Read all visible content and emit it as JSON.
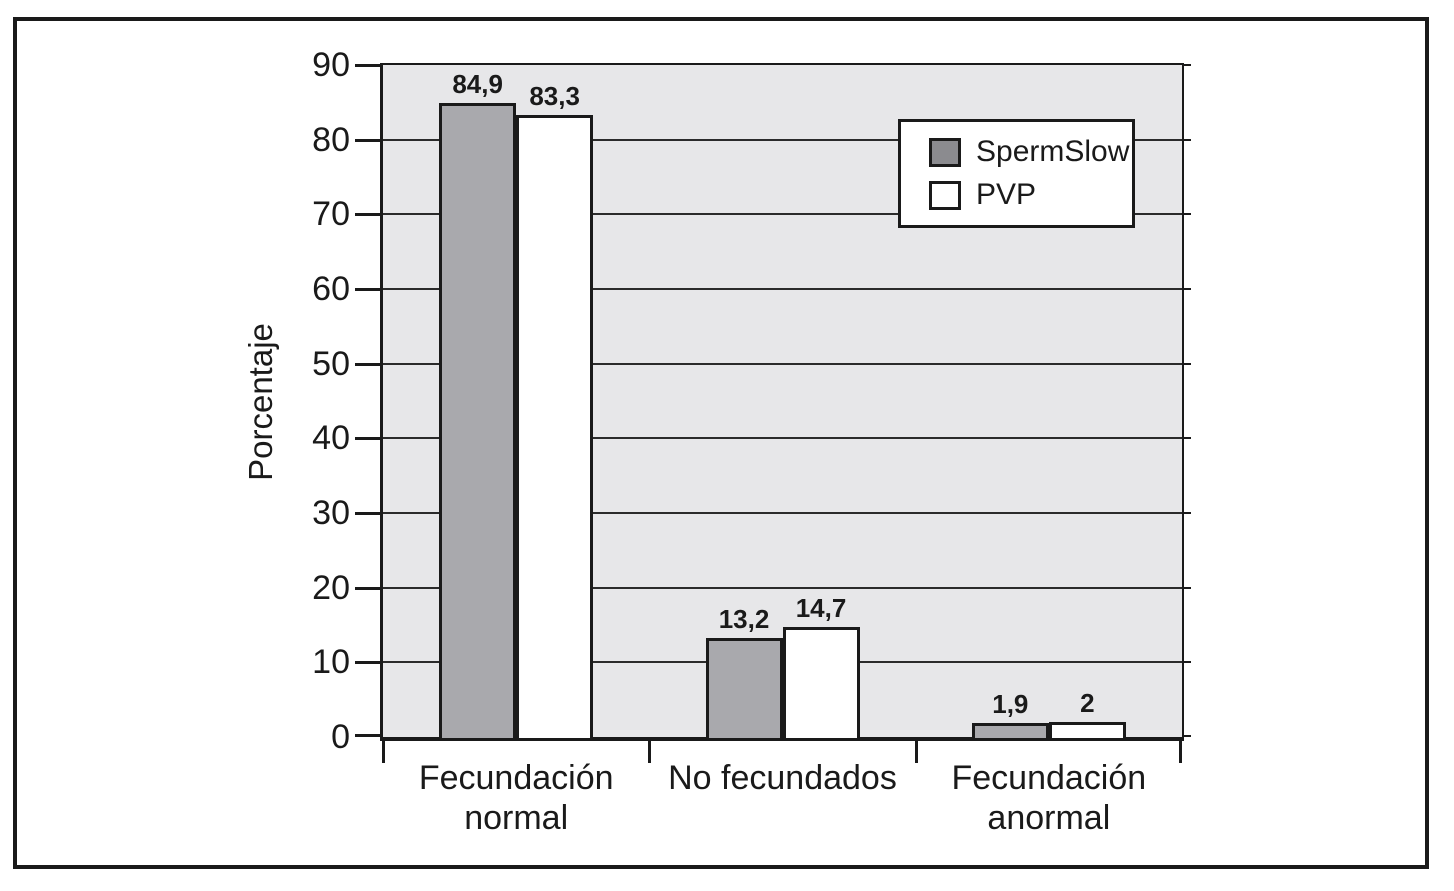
{
  "page": {
    "background_color": "#ffffff",
    "frame_border_color": "#1a1a1a"
  },
  "chart_data": {
    "type": "bar",
    "title": "",
    "xlabel": "",
    "ylabel": "Porcentaje",
    "ylim": [
      0,
      90
    ],
    "ytick_step": 10,
    "yticks": [
      0,
      10,
      20,
      30,
      40,
      50,
      60,
      70,
      80,
      90
    ],
    "grid": true,
    "legend_position": "top-right",
    "plot_background": "#e7e7e9",
    "gridline_color": "#2b2b2b",
    "axis_color": "#1a1a1a",
    "categories": [
      {
        "id": "fecundacion-normal",
        "lines": [
          "Fecundación",
          "normal"
        ]
      },
      {
        "id": "no-fecundados",
        "lines": [
          "No fecundados"
        ]
      },
      {
        "id": "fecundacion-anormal",
        "lines": [
          "Fecundación",
          "anormal"
        ]
      }
    ],
    "series": [
      {
        "name": "SpermSlow",
        "color": "#a9a9ad",
        "swatch_color": "#8b8b8f",
        "values": [
          84.9,
          13.2,
          1.9
        ],
        "value_labels": [
          "84,9",
          "13,2",
          "1,9"
        ]
      },
      {
        "name": "PVP",
        "color": "#ffffff",
        "swatch_color": "#ffffff",
        "values": [
          83.3,
          14.7,
          2
        ],
        "value_labels": [
          "83,3",
          "14,7",
          "2"
        ]
      }
    ]
  }
}
